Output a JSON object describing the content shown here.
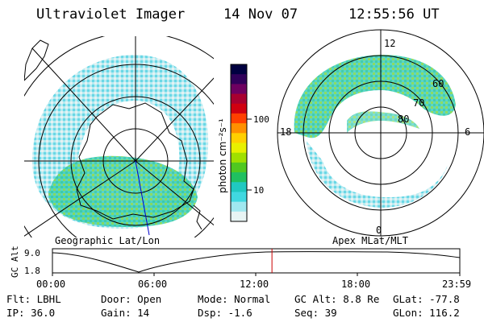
{
  "header": {
    "instrument": "Ultraviolet Imager",
    "date": "14 Nov 07",
    "time": "12:55:56 UT"
  },
  "left_panel": {
    "label": "Geographic Lat/Lon"
  },
  "right_panel": {
    "label": "Apex MLat/MLT",
    "mlt_labels": {
      "top": "12",
      "left": "18",
      "right": "6",
      "bottom": "0"
    },
    "lat_labels": [
      "60",
      "70",
      "80"
    ]
  },
  "colorbar": {
    "unit_label": "photon cm⁻²s⁻¹",
    "ticks": [
      "100",
      "10"
    ],
    "colors": [
      "#000040",
      "#30005a",
      "#6e0060",
      "#a80030",
      "#d00010",
      "#ff4000",
      "#ff9000",
      "#ffd000",
      "#e8f000",
      "#a0e000",
      "#50c820",
      "#20c060",
      "#20c8c0",
      "#40d8e0",
      "#a0e8f0",
      "#e8f4f4"
    ]
  },
  "timeline": {
    "ylabel": "GC Alt",
    "ytick_top": "9.0",
    "ytick_bottom": "1.8",
    "ticks": [
      "00:00",
      "06:00",
      "12:00",
      "18:00",
      "23:59"
    ],
    "current_time_fraction": 0.5389
  },
  "info": {
    "flt": "Flt: LBHL",
    "door": "Door: Open",
    "mode": "Mode: Normal",
    "gc_alt": "GC Alt: 8.8 Re",
    "glat": "GLat: -77.8",
    "ip": "IP: 36.0",
    "gain": "Gain: 14",
    "dsp": "Dsp:   -1.6",
    "seq": "Seq: 39",
    "glon": "GLon: 116.2"
  },
  "accent_colors": {
    "marker": "#cc0000",
    "meridian": "#0000cc"
  }
}
